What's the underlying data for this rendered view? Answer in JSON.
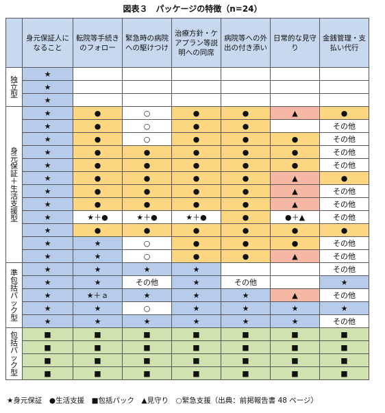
{
  "title": "図表３　パッケージの特徴（n=24）",
  "headers": [
    "身元保証人になること",
    "転院等手続きのフォロー",
    "緊急時の病院への駆けつけ",
    "治療方針・ケアプラン等説明への同席",
    "病院等への外出の付き添い",
    "日常的な見守り",
    "金銭管理・支払い代行"
  ],
  "groups": [
    {
      "label": "独立型",
      "rows": 3
    },
    {
      "label": "身元保証＋生活支援型",
      "rows": 12
    },
    {
      "label": "準包括パック型",
      "rows": 5
    },
    {
      "label": "包括パック型",
      "rows": 4
    }
  ],
  "rows": [
    [
      [
        "★",
        "B"
      ],
      [
        "",
        "W"
      ],
      [
        "",
        "W"
      ],
      [
        "",
        "W"
      ],
      [
        "",
        "W"
      ],
      [
        "",
        "W"
      ],
      [
        "",
        "W"
      ]
    ],
    [
      [
        "★",
        "B"
      ],
      [
        "",
        "W"
      ],
      [
        "",
        "W"
      ],
      [
        "",
        "W"
      ],
      [
        "",
        "W"
      ],
      [
        "",
        "W"
      ],
      [
        "",
        "W"
      ]
    ],
    [
      [
        "★",
        "B"
      ],
      [
        "",
        "W"
      ],
      [
        "",
        "W"
      ],
      [
        "",
        "W"
      ],
      [
        "",
        "W"
      ],
      [
        "",
        "W"
      ],
      [
        "",
        "W"
      ]
    ],
    [
      [
        "★",
        "B"
      ],
      [
        "●",
        "Y"
      ],
      [
        "○",
        "W"
      ],
      [
        "●",
        "Y"
      ],
      [
        "●",
        "Y"
      ],
      [
        "▲",
        "P"
      ],
      [
        "●",
        "Y"
      ]
    ],
    [
      [
        "★",
        "B"
      ],
      [
        "●",
        "Y"
      ],
      [
        "○",
        "W"
      ],
      [
        "●",
        "Y"
      ],
      [
        "●",
        "Y"
      ],
      [
        "",
        "W"
      ],
      [
        "その他",
        "W"
      ]
    ],
    [
      [
        "★",
        "B"
      ],
      [
        "●",
        "Y"
      ],
      [
        "○",
        "W"
      ],
      [
        "●",
        "Y"
      ],
      [
        "●",
        "Y"
      ],
      [
        "●",
        "Y"
      ],
      [
        "その他",
        "W"
      ]
    ],
    [
      [
        "★",
        "B"
      ],
      [
        "●",
        "Y"
      ],
      [
        "●",
        "Y"
      ],
      [
        "●",
        "Y"
      ],
      [
        "●",
        "Y"
      ],
      [
        "●",
        "Y"
      ],
      [
        "その他",
        "W"
      ]
    ],
    [
      [
        "★",
        "B"
      ],
      [
        "●",
        "Y"
      ],
      [
        "●",
        "Y"
      ],
      [
        "●",
        "Y"
      ],
      [
        "●",
        "Y"
      ],
      [
        "●",
        "Y"
      ],
      [
        "その他",
        "W"
      ]
    ],
    [
      [
        "★",
        "B"
      ],
      [
        "●",
        "Y"
      ],
      [
        "●",
        "Y"
      ],
      [
        "●",
        "Y"
      ],
      [
        "●",
        "Y"
      ],
      [
        "▲",
        "P"
      ],
      [
        "●",
        "Y"
      ]
    ],
    [
      [
        "★",
        "B"
      ],
      [
        "●",
        "Y"
      ],
      [
        "●",
        "Y"
      ],
      [
        "●",
        "Y"
      ],
      [
        "●",
        "Y"
      ],
      [
        "▲",
        "P"
      ],
      [
        "その他",
        "W"
      ]
    ],
    [
      [
        "★",
        "B"
      ],
      [
        "●",
        "Y"
      ],
      [
        "●",
        "Y"
      ],
      [
        "●",
        "Y"
      ],
      [
        "●",
        "Y"
      ],
      [
        "▲",
        "P"
      ],
      [
        "その他",
        "W"
      ]
    ],
    [
      [
        "★",
        "B"
      ],
      [
        "★＋●",
        "W"
      ],
      [
        "★＋●",
        "W"
      ],
      [
        "★＋●",
        "W"
      ],
      [
        "●",
        "Y"
      ],
      [
        "●＋▲",
        "W"
      ],
      [
        "その他",
        "W"
      ]
    ],
    [
      [
        "★",
        "B"
      ],
      [
        "●",
        "Y"
      ],
      [
        "●",
        "Y"
      ],
      [
        "●",
        "Y"
      ],
      [
        "●",
        "Y"
      ],
      [
        "●",
        "Y"
      ],
      [
        "●",
        "Y"
      ]
    ],
    [
      [
        "★",
        "B"
      ],
      [
        "★",
        "B"
      ],
      [
        "○",
        "W"
      ],
      [
        "●",
        "Y"
      ],
      [
        "●",
        "Y"
      ],
      [
        "●",
        "Y"
      ],
      [
        "その他",
        "W"
      ]
    ],
    [
      [
        "★",
        "B"
      ],
      [
        "★",
        "B"
      ],
      [
        "○",
        "W"
      ],
      [
        "●",
        "Y"
      ],
      [
        "●",
        "Y"
      ],
      [
        "▲",
        "P"
      ],
      [
        "その他",
        "W"
      ]
    ],
    [
      [
        "★",
        "B"
      ],
      [
        "★",
        "B"
      ],
      [
        "★",
        "B"
      ],
      [
        "★",
        "B"
      ],
      [
        "",
        "W"
      ],
      [
        "",
        "W"
      ],
      [
        "その他",
        "W"
      ]
    ],
    [
      [
        "★",
        "B"
      ],
      [
        "★",
        "B"
      ],
      [
        "その他",
        "W"
      ],
      [
        "★",
        "B"
      ],
      [
        "その他",
        "W"
      ],
      [
        "",
        "W"
      ],
      [
        "★",
        "B"
      ]
    ],
    [
      [
        "★",
        "B"
      ],
      [
        "★＋ａ",
        "B"
      ],
      [
        "★",
        "B"
      ],
      [
        "★",
        "B"
      ],
      [
        "★",
        "B"
      ],
      [
        "▲",
        "P"
      ],
      [
        "その他",
        "W"
      ]
    ],
    [
      [
        "★",
        "B"
      ],
      [
        "★",
        "B"
      ],
      [
        "○",
        "W"
      ],
      [
        "★",
        "B"
      ],
      [
        "★",
        "B"
      ],
      [
        "★",
        "B"
      ],
      [
        "★",
        "B"
      ]
    ],
    [
      [
        "★",
        "B"
      ],
      [
        "★",
        "B"
      ],
      [
        "★",
        "B"
      ],
      [
        "★",
        "B"
      ],
      [
        "★",
        "B"
      ],
      [
        "★",
        "B"
      ],
      [
        "その他",
        "W"
      ]
    ],
    [
      [
        "■",
        "G"
      ],
      [
        "■",
        "G"
      ],
      [
        "■",
        "G"
      ],
      [
        "■",
        "G"
      ],
      [
        "■",
        "G"
      ],
      [
        "■",
        "G"
      ],
      [
        "■",
        "G"
      ]
    ],
    [
      [
        "■",
        "G"
      ],
      [
        "■",
        "G"
      ],
      [
        "■",
        "G"
      ],
      [
        "■",
        "G"
      ],
      [
        "■",
        "G"
      ],
      [
        "■",
        "G"
      ],
      [
        "■",
        "G"
      ]
    ],
    [
      [
        "■",
        "G"
      ],
      [
        "■",
        "G"
      ],
      [
        "■",
        "G"
      ],
      [
        "■",
        "G"
      ],
      [
        "■",
        "G"
      ],
      [
        "■",
        "G"
      ],
      [
        "■",
        "G"
      ]
    ],
    [
      [
        "■",
        "G"
      ],
      [
        "■",
        "G"
      ],
      [
        "■",
        "G"
      ],
      [
        "■",
        "G"
      ],
      [
        "■",
        "G"
      ],
      [
        "■",
        "G"
      ],
      [
        "■",
        "G"
      ]
    ]
  ],
  "legend": "★身元保証　●生活支援　■包括パック　▲見守り　○緊急支援（出典：前掲報告書 48 ページ）",
  "colors": {
    "B": "#b7ccea",
    "Y": "#fcd680",
    "W": "#ffffff",
    "P": "#f6b8a4",
    "G": "#cfe2b0"
  }
}
